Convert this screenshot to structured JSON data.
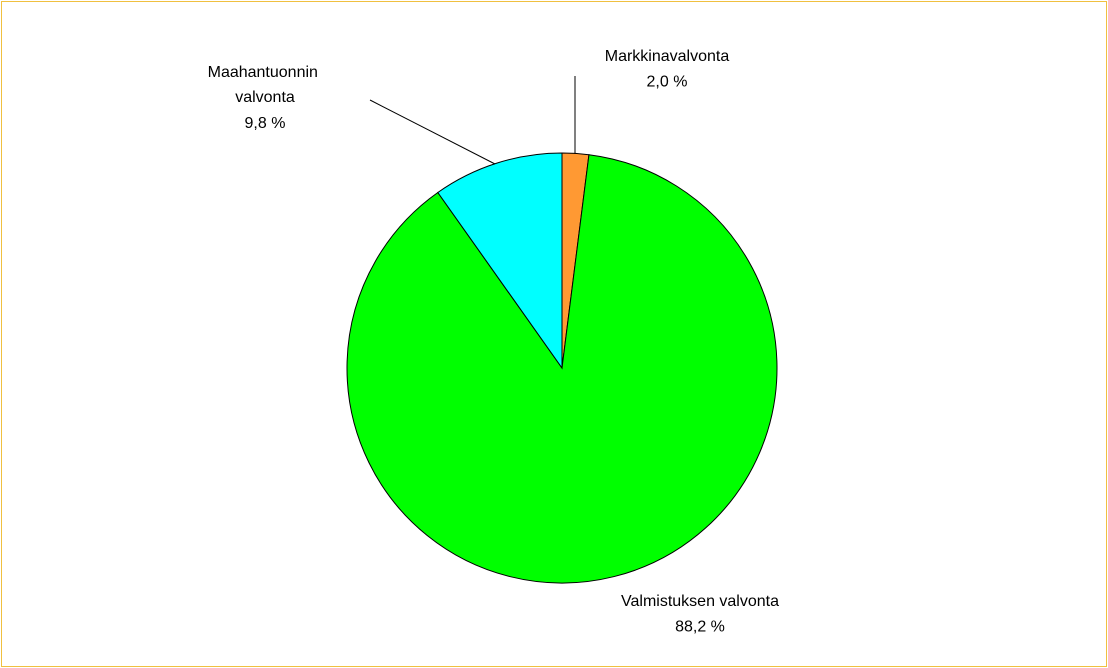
{
  "chart_data": {
    "type": "pie",
    "categories": [
      "Markkinavalvonta",
      "Valmistuksen valvonta",
      "Maahantuonnin valvonta"
    ],
    "values": [
      2.0,
      88.2,
      9.8
    ],
    "value_labels": [
      "2,0 %",
      "88,2 %",
      "9,8 %"
    ],
    "colors": [
      "#ff9933",
      "#00ff00",
      "#00ffff"
    ]
  }
}
